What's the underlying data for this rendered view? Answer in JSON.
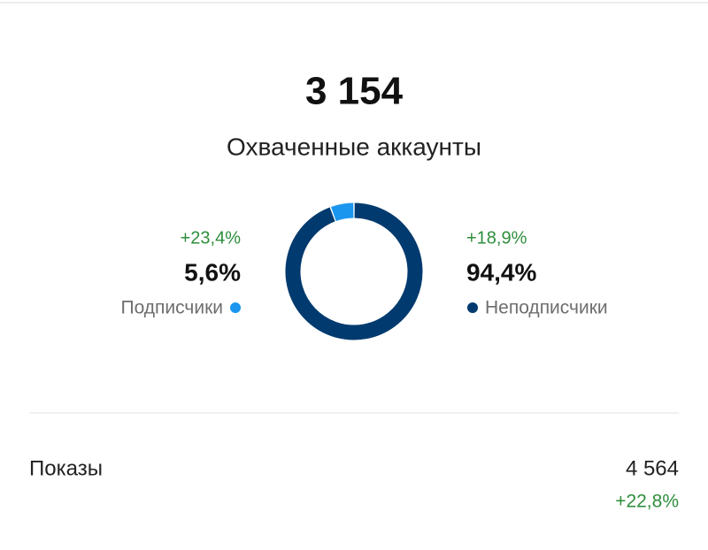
{
  "header": {
    "value": "3 154",
    "label": "Охваченные аккаунты"
  },
  "chart_data": {
    "type": "donut",
    "categories": [
      "Подписчики",
      "Неподписчики"
    ],
    "values": [
      5.6,
      94.4
    ],
    "value_labels": [
      "5,6%",
      "94,4%"
    ],
    "changes": [
      "+23,4%",
      "+18,9%"
    ],
    "colors": [
      "#1b96ef",
      "#003a6e"
    ]
  },
  "impressions": {
    "label": "Показы",
    "value": "4 564",
    "change": "+22,8%"
  }
}
